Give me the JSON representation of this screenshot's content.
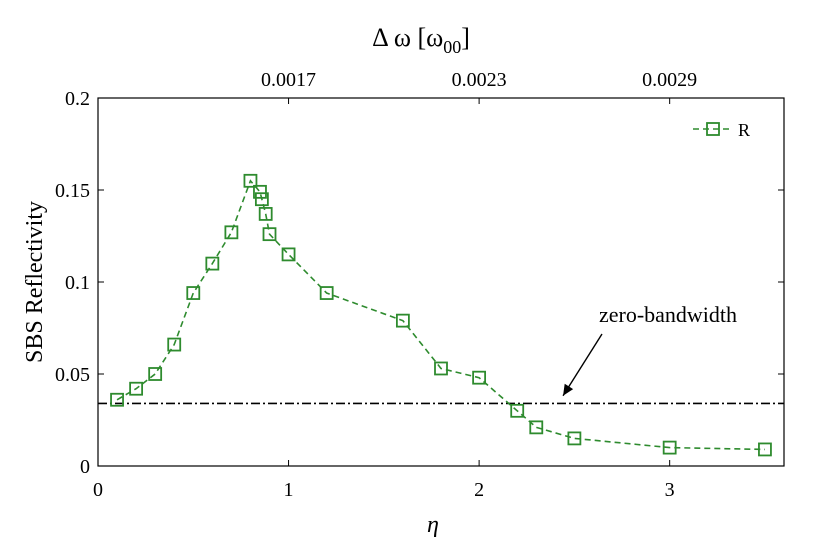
{
  "chart_data": {
    "type": "line",
    "title": "",
    "xlabel": "η",
    "ylabel": "SBS Reflectivity",
    "xlim": [
      0,
      3.6
    ],
    "ylim": [
      0,
      0.2
    ],
    "x_ticks": [
      0,
      1,
      2,
      3
    ],
    "x_tick_labels": [
      "0",
      "1",
      "2",
      "3"
    ],
    "y_ticks": [
      0,
      0.05,
      0.1,
      0.15,
      0.2
    ],
    "y_tick_labels": [
      "0",
      "0.05",
      "0.1",
      "0.15",
      "0.2"
    ],
    "top_axis": {
      "label_main": "Δ ω [ω",
      "label_sub": "00",
      "label_close": "]",
      "ticks_at_eta": [
        1,
        2,
        3
      ],
      "tick_labels": [
        "0.0017",
        "0.0023",
        "0.0029"
      ]
    },
    "grid": false,
    "legend_position": "top-right",
    "series": [
      {
        "name": "R",
        "color": "#2e8b2e",
        "line_style": "dashed",
        "marker": "square-open",
        "x": [
          0.1,
          0.2,
          0.3,
          0.4,
          0.5,
          0.6,
          0.7,
          0.8,
          0.85,
          0.86,
          0.88,
          0.9,
          1.0,
          1.2,
          1.6,
          1.8,
          2.0,
          2.2,
          2.3,
          2.5,
          3.0,
          3.5
        ],
        "y": [
          0.036,
          0.042,
          0.05,
          0.066,
          0.094,
          0.11,
          0.127,
          0.155,
          0.149,
          0.145,
          0.137,
          0.126,
          0.115,
          0.094,
          0.079,
          0.053,
          0.048,
          0.03,
          0.021,
          0.015,
          0.01,
          0.009
        ]
      }
    ],
    "reference_line": {
      "y": 0.034,
      "color": "#000000",
      "line_style": "dash-dot"
    },
    "annotations": [
      {
        "text": "zero-bandwidth",
        "target_x": 2.43,
        "target_y": 0.036
      }
    ]
  }
}
